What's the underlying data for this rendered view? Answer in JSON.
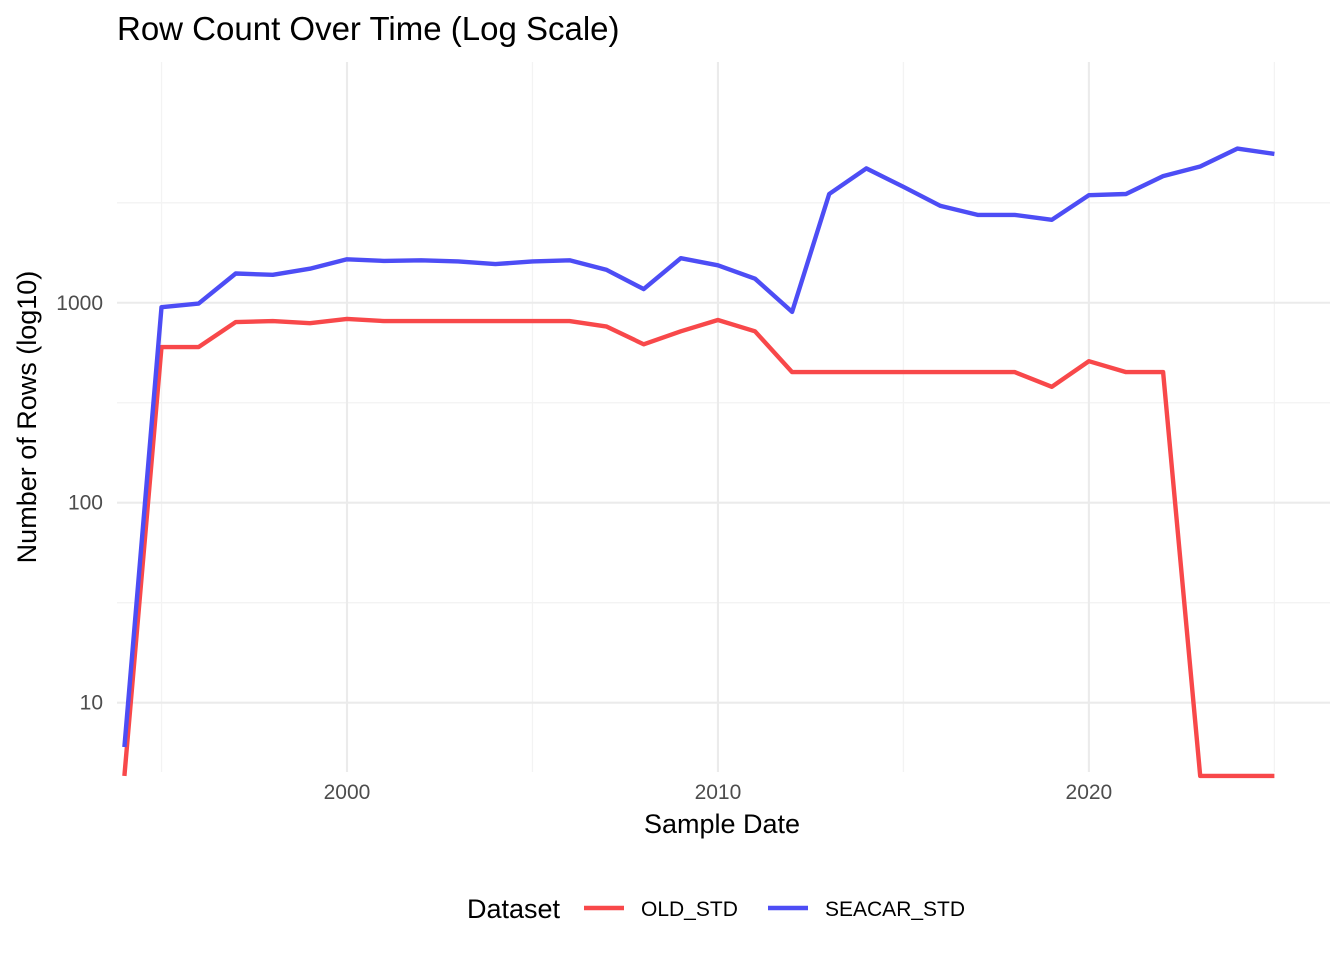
{
  "chart_data": {
    "type": "line",
    "title": "Row Count Over Time (Log Scale)",
    "xlabel": "Sample Date",
    "ylabel": "Number of Rows (log10)",
    "y_scale": "log10",
    "xlim": [
      1993.8,
      2026.5
    ],
    "ylim": [
      4.5,
      16000
    ],
    "x_ticks": [
      {
        "value": 2000,
        "label": "2000"
      },
      {
        "value": 2010,
        "label": "2010"
      },
      {
        "value": 2020,
        "label": "2020"
      }
    ],
    "y_ticks": [
      {
        "value": 10,
        "label": "10"
      },
      {
        "value": 100,
        "label": "100"
      },
      {
        "value": 1000,
        "label": "1000"
      }
    ],
    "grid": true,
    "legend": {
      "title": "Dataset",
      "position": "bottom"
    },
    "series": [
      {
        "name": "OLD_STD",
        "color": "#F8484A",
        "x": [
          1994,
          1995,
          1996,
          1997,
          1998,
          1999,
          2000,
          2001,
          2002,
          2003,
          2004,
          2005,
          2006,
          2007,
          2008,
          2009,
          2010,
          2011,
          2012,
          2013,
          2014,
          2015,
          2016,
          2017,
          2018,
          2019,
          2020,
          2021,
          2022,
          2023,
          2024,
          2025
        ],
        "values": [
          4.3,
          600,
          600,
          800,
          810,
          790,
          830,
          810,
          810,
          810,
          810,
          810,
          810,
          760,
          620,
          720,
          820,
          720,
          450,
          450,
          450,
          450,
          450,
          450,
          450,
          380,
          510,
          450,
          450,
          4.3,
          4.3,
          4.3
        ]
      },
      {
        "name": "SEACAR_STD",
        "color": "#4D4DF5",
        "x": [
          1994,
          1995,
          1996,
          1997,
          1998,
          1999,
          2000,
          2001,
          2002,
          2003,
          2004,
          2005,
          2006,
          2007,
          2008,
          2009,
          2010,
          2011,
          2012,
          2013,
          2014,
          2015,
          2016,
          2017,
          2018,
          2019,
          2020,
          2021,
          2022,
          2023,
          2024,
          2025
        ],
        "values": [
          6,
          950,
          990,
          1400,
          1380,
          1480,
          1650,
          1620,
          1630,
          1610,
          1560,
          1610,
          1630,
          1460,
          1170,
          1670,
          1540,
          1320,
          900,
          3500,
          4700,
          3800,
          3050,
          2750,
          2750,
          2600,
          3450,
          3500,
          4300,
          4800,
          5900,
          5550
        ]
      }
    ]
  }
}
